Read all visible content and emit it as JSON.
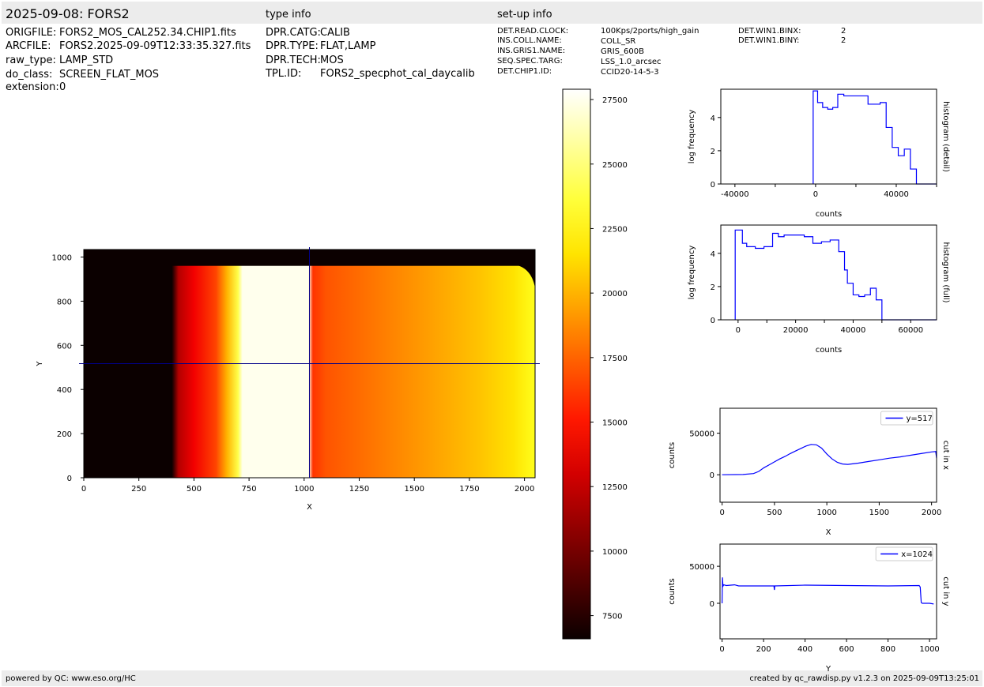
{
  "header": {
    "title": "2025-09-08: FORS2",
    "type_info_label": "type info",
    "setup_info_label": "set-up info"
  },
  "file_info": [
    {
      "key": "ORIGFILE:",
      "value": "FORS2_MOS_CAL252.34.CHIP1.fits"
    },
    {
      "key": "ARCFILE:",
      "value": "FORS2.2025-09-09T12:33:35.327.fits"
    },
    {
      "key": "raw_type:",
      "value": "LAMP_STD"
    },
    {
      "key": "do_class:",
      "value": "SCREEN_FLAT_MOS"
    },
    {
      "key": "extension:",
      "value": "0"
    }
  ],
  "type_info": [
    {
      "key": "DPR.CATG:",
      "value": "CALIB"
    },
    {
      "key": "DPR.TYPE:",
      "value": "FLAT,LAMP"
    },
    {
      "key": "DPR.TECH:",
      "value": "MOS"
    },
    {
      "key": "TPL.ID:",
      "value": "FORS2_specphot_cal_daycalib"
    }
  ],
  "setup_info": [
    {
      "key": "DET.READ.CLOCK:",
      "value": "100Kps/2ports/high_gain"
    },
    {
      "key": "INS.COLL.NAME:",
      "value": "COLL_SR"
    },
    {
      "key": "INS.GRIS1.NAME:",
      "value": "GRIS_600B"
    },
    {
      "key": "SEQ.SPEC.TARG:",
      "value": "LSS_1.0_arcsec"
    },
    {
      "key": "DET.CHIP1.ID:",
      "value": "CCID20-14-5-3"
    }
  ],
  "setup_info2": [
    {
      "key": "DET.WIN1.BINX:",
      "value": "2"
    },
    {
      "key": "DET.WIN1.BINY:",
      "value": "2"
    }
  ],
  "footer": {
    "left": "powered by QC: www.eso.org/HC",
    "right": "created by qc_rawdisp.py v1.2.3 on 2025-09-09T13:25:01"
  },
  "colors": {
    "band": "#ececec",
    "line": "#0000ff",
    "cross": "#00008b"
  },
  "chart_data": [
    {
      "type": "heatmap",
      "colormap": "hot",
      "xlabel": "X",
      "ylabel": "Y",
      "xlim": [
        0,
        2048
      ],
      "ylim": [
        0,
        1034
      ],
      "xticks": [
        0,
        250,
        500,
        750,
        1000,
        1250,
        1500,
        1750,
        2000
      ],
      "yticks": [
        0,
        200,
        400,
        600,
        800,
        1000
      ],
      "crosshair": {
        "x": 1024,
        "y": 517
      },
      "profile_x": [
        0,
        400,
        430,
        500,
        600,
        650,
        700,
        720,
        1000,
        1020,
        1040,
        1100,
        1200,
        1400,
        1600,
        1800,
        1950,
        2048
      ],
      "profile_v": [
        0,
        1000,
        12000,
        14000,
        16500,
        20000,
        24000,
        27500,
        27500,
        27500,
        16000,
        17000,
        17500,
        18500,
        19500,
        20500,
        21500,
        23000
      ]
    },
    {
      "type": "colorbar",
      "colormap": "hot",
      "vlim": [
        6600,
        27900
      ],
      "ticks": [
        7500,
        10000,
        12500,
        15000,
        17500,
        20000,
        22500,
        25000,
        27500
      ]
    },
    {
      "type": "line",
      "step": true,
      "title": "histogram (detail)",
      "xlabel": "counts",
      "ylabel": "log frequency",
      "xlim": [
        -47000,
        60000
      ],
      "ylim": [
        0,
        5.7
      ],
      "xticks": [
        -40000,
        0,
        40000
      ],
      "yticks": [
        0,
        2,
        4
      ],
      "x": [
        -1200,
        -1200,
        1000,
        3500,
        6000,
        8500,
        11000,
        14000,
        17000,
        20000,
        23000,
        26000,
        29000,
        32000,
        35000,
        38000,
        41000,
        44000,
        47000,
        50000,
        52000
      ],
      "y": [
        0,
        5.6,
        4.9,
        4.6,
        4.5,
        4.6,
        5.4,
        5.3,
        5.3,
        5.3,
        5.3,
        4.8,
        4.8,
        4.9,
        3.4,
        2.2,
        1.7,
        2.1,
        0.9,
        0.0,
        0.0
      ]
    },
    {
      "type": "line",
      "step": true,
      "title": "histogram (full)",
      "xlabel": "counts",
      "ylabel": "log frequency",
      "xlim": [
        -6000,
        69000
      ],
      "ylim": [
        0,
        5.7
      ],
      "xticks": [
        0,
        20000,
        40000,
        60000
      ],
      "yticks": [
        0,
        2,
        4
      ],
      "x": [
        -1000,
        -1000,
        1500,
        3000,
        6000,
        9000,
        12000,
        14000,
        16000,
        18000,
        20000,
        23000,
        26000,
        29000,
        32000,
        35000,
        37000,
        38000,
        40000,
        42000,
        44000,
        46000,
        48000,
        50000,
        51500
      ],
      "y": [
        0,
        5.4,
        4.6,
        4.4,
        4.3,
        4.4,
        5.2,
        5.0,
        5.1,
        5.1,
        5.1,
        5.0,
        4.6,
        4.7,
        4.8,
        4.1,
        3.0,
        2.2,
        1.5,
        1.4,
        1.5,
        1.9,
        1.2,
        0.0,
        0.0
      ],
      "xend": 51500
    },
    {
      "type": "line",
      "title": "cut in x",
      "xlabel": "X",
      "ylabel": "counts",
      "legend": "y=517",
      "legend_position": "top-right",
      "xlim": [
        -20,
        2048
      ],
      "ylim": [
        -33000,
        80000
      ],
      "xticks": [
        0,
        500,
        1000,
        1500,
        2000
      ],
      "yticks": [
        0,
        50000
      ],
      "x": [
        0,
        200,
        300,
        350,
        400,
        450,
        500,
        550,
        600,
        650,
        700,
        750,
        800,
        850,
        900,
        950,
        1000,
        1050,
        1100,
        1150,
        1200,
        1300,
        1400,
        1500,
        1600,
        1700,
        1800,
        1900,
        2000,
        2040,
        2048
      ],
      "y": [
        0,
        300,
        1500,
        4000,
        8500,
        12000,
        15500,
        19000,
        22000,
        25500,
        28500,
        31500,
        34500,
        36500,
        36000,
        32000,
        25000,
        19000,
        15000,
        13000,
        12500,
        14000,
        16000,
        18000,
        20000,
        21500,
        23500,
        25500,
        27500,
        28000,
        20000
      ]
    },
    {
      "type": "line",
      "title": "cut in y",
      "xlabel": "Y",
      "ylabel": "counts",
      "legend": "x=1024",
      "legend_position": "top-right",
      "xlim": [
        -10,
        1034
      ],
      "ylim": [
        -48000,
        80000
      ],
      "xticks": [
        0,
        200,
        400,
        600,
        800,
        1000
      ],
      "yticks": [
        0,
        50000
      ],
      "x": [
        0,
        2,
        4,
        8,
        20,
        60,
        80,
        200,
        250,
        252,
        254,
        400,
        600,
        800,
        950,
        955,
        960,
        965,
        1000,
        1020
      ],
      "y": [
        0,
        35000,
        23000,
        25000,
        24000,
        25000,
        23500,
        23500,
        23500,
        18000,
        23500,
        24500,
        24000,
        23500,
        24000,
        22000,
        1000,
        0,
        0,
        -1000
      ]
    }
  ]
}
